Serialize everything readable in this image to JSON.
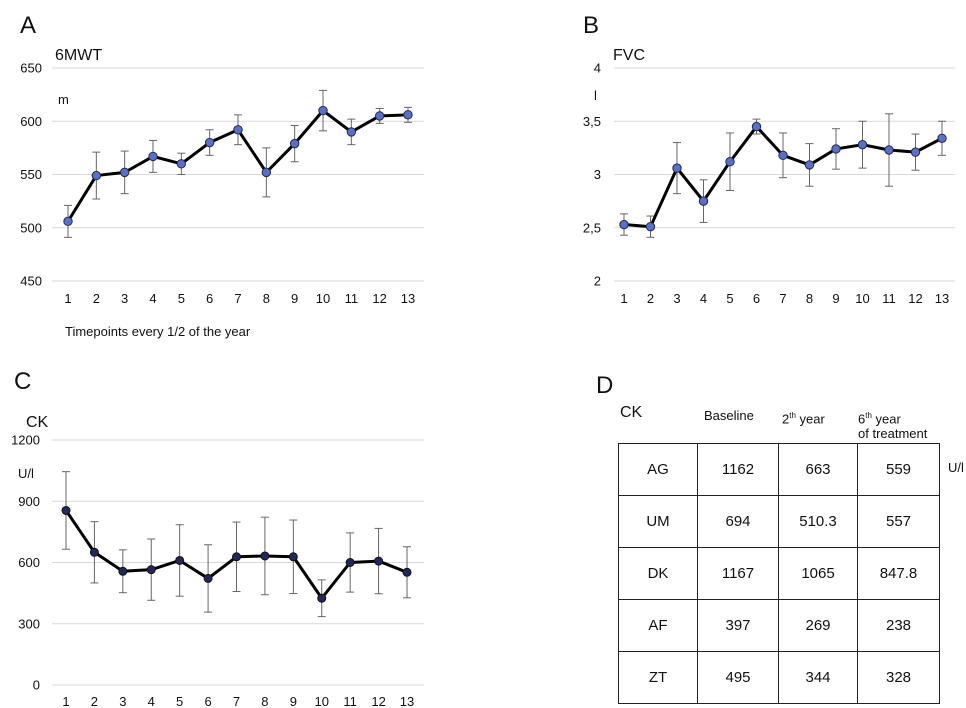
{
  "panels": {
    "a": "A",
    "b": "B",
    "c": "C",
    "d": "D"
  },
  "chart_data": [
    {
      "type": "line",
      "title": "6MWT",
      "ylabel": "m",
      "xlabel": "Timepoints every 1/2 of the year",
      "ylim": [
        450,
        650
      ],
      "yticks": [
        "450",
        "500",
        "550",
        "600",
        "650"
      ],
      "grid": true,
      "categories": [
        "1",
        "2",
        "3",
        "4",
        "5",
        "6",
        "7",
        "8",
        "9",
        "10",
        "11",
        "12",
        "13"
      ],
      "values": [
        506,
        549,
        552,
        567,
        560,
        580,
        592,
        552,
        579,
        610,
        590,
        605,
        606
      ],
      "error": [
        15,
        22,
        20,
        15,
        10,
        12,
        14,
        23,
        17,
        19,
        12,
        7,
        7
      ]
    },
    {
      "type": "line",
      "title": "FVC",
      "ylabel": "l",
      "ylim": [
        2,
        4
      ],
      "yticks": [
        "2",
        "2,5",
        "3",
        "3,5",
        "4"
      ],
      "grid": true,
      "categories": [
        "1",
        "2",
        "3",
        "4",
        "5",
        "6",
        "7",
        "8",
        "9",
        "10",
        "11",
        "12",
        "13"
      ],
      "values": [
        2.53,
        2.51,
        3.06,
        2.75,
        3.12,
        3.45,
        3.18,
        3.09,
        3.24,
        3.28,
        3.23,
        3.21,
        3.34
      ],
      "error": [
        0.1,
        0.1,
        0.24,
        0.2,
        0.27,
        0.07,
        0.21,
        0.2,
        0.19,
        0.22,
        0.34,
        0.17,
        0.16
      ]
    },
    {
      "type": "line",
      "title": "CK",
      "ylabel": "U/l",
      "ylim": [
        0,
        1200
      ],
      "yticks": [
        "0",
        "300",
        "600",
        "900",
        "1200"
      ],
      "grid": true,
      "categories": [
        "1",
        "2",
        "3",
        "4",
        "5",
        "6",
        "7",
        "8",
        "9",
        "10",
        "11",
        "12",
        "13"
      ],
      "values": [
        855,
        650,
        557,
        565,
        610,
        522,
        628,
        632,
        628,
        425,
        600,
        607,
        552
      ],
      "error": [
        190,
        150,
        105,
        150,
        175,
        165,
        170,
        190,
        180,
        90,
        145,
        160,
        125
      ]
    },
    {
      "type": "table",
      "title": "CK",
      "unit": "U/l",
      "columns": [
        {
          "pre": "Baseline"
        },
        {
          "pre": "2",
          "sup": "th",
          "post": " year"
        },
        {
          "pre": "6",
          "sup": "th",
          "post": " year",
          "line2": "of treatment"
        }
      ],
      "rows": [
        {
          "name": "AG",
          "cells": [
            "1162",
            "663",
            "559"
          ]
        },
        {
          "name": "UM",
          "cells": [
            "694",
            "510.3",
            "557"
          ]
        },
        {
          "name": "DK",
          "cells": [
            "1167",
            "1065",
            "847.8"
          ]
        },
        {
          "name": "AF",
          "cells": [
            "397",
            "269",
            "238"
          ]
        },
        {
          "name": "ZT",
          "cells": [
            "495",
            "344",
            "328"
          ]
        }
      ]
    }
  ]
}
